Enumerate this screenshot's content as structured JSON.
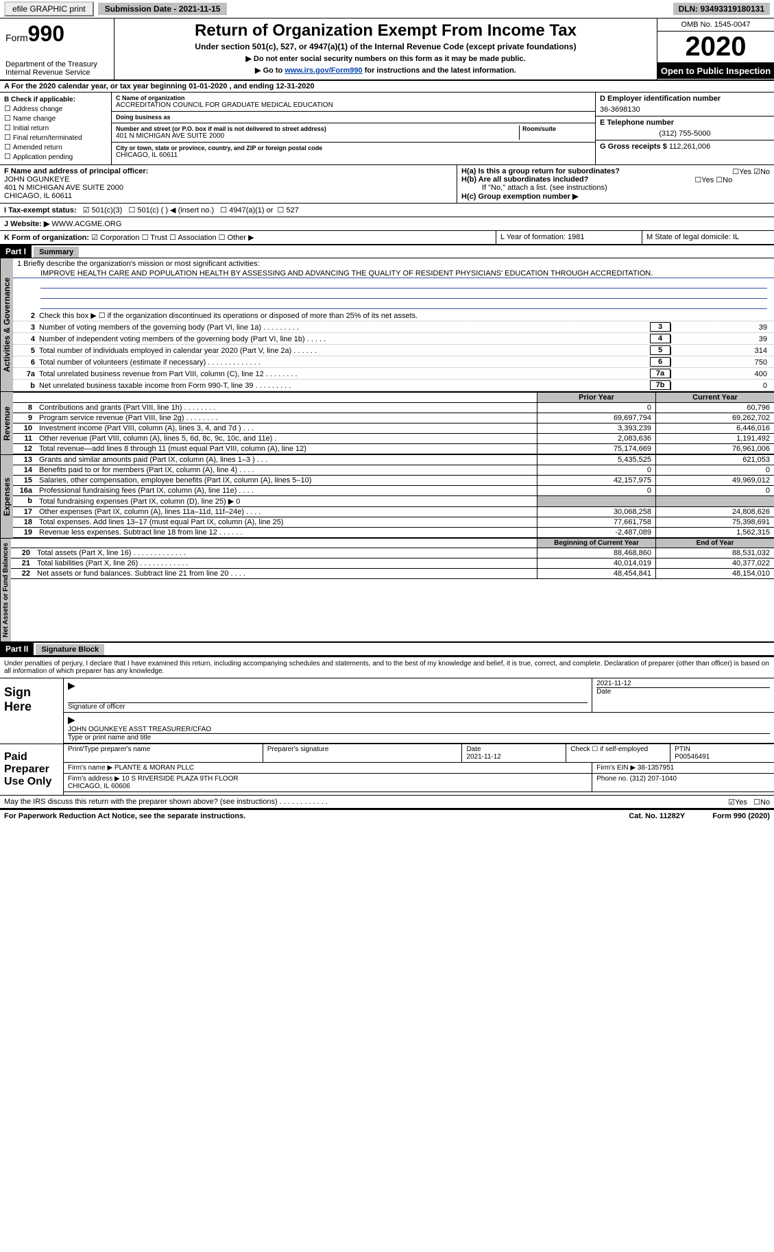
{
  "topbar": {
    "efile": "efile GRAPHIC print",
    "submission": "Submission Date - 2021-11-15",
    "dln": "DLN: 93493319180131"
  },
  "header": {
    "form_label": "Form",
    "form_num": "990",
    "dept": "Department of the Treasury\nInternal Revenue Service",
    "title": "Return of Organization Exempt From Income Tax",
    "sub": "Under section 501(c), 527, or 4947(a)(1) of the Internal Revenue Code (except private foundations)",
    "note1": "▶ Do not enter social security numbers on this form as it may be made public.",
    "note2_pre": "▶ Go to ",
    "note2_link": "www.irs.gov/Form990",
    "note2_post": " for instructions and the latest information.",
    "omb": "OMB No. 1545-0047",
    "year": "2020",
    "inspect": "Open to Public Inspection"
  },
  "row_a": "A For the 2020 calendar year, or tax year beginning 01-01-2020    , and ending 12-31-2020",
  "col_b": {
    "title": "B Check if applicable:",
    "items": [
      "Address change",
      "Name change",
      "Initial return",
      "Final return/terminated",
      "Amended return",
      "Application pending"
    ]
  },
  "col_c": {
    "name_lbl": "C Name of organization",
    "name": "ACCREDITATION COUNCIL FOR GRADUATE MEDICAL EDUCATION",
    "dba_lbl": "Doing business as",
    "dba": "",
    "addr_lbl": "Number and street (or P.O. box if mail is not delivered to street address)",
    "room_lbl": "Room/suite",
    "addr": "401 N MICHIGAN AVE SUITE 2000",
    "city_lbl": "City or town, state or province, country, and ZIP or foreign postal code",
    "city": "CHICAGO, IL  60611"
  },
  "col_de": {
    "d_lbl": "D Employer identification number",
    "d": "36-3698130",
    "e_lbl": "E Telephone number",
    "e": "(312) 755-5000",
    "g_lbl": "G Gross receipts $",
    "g": "112,261,006"
  },
  "row_f": {
    "f_lbl": "F Name and address of principal officer:",
    "f_name": "JOHN OGUNKEYE",
    "f_addr": "401 N MICHIGAN AVE SUITE 2000\nCHICAGO, IL  60611",
    "ha": "H(a)  Is this a group return for subordinates?",
    "ha_yes": "Yes",
    "ha_no": "No",
    "hb": "H(b)  Are all subordinates included?",
    "hb_note": "If \"No,\" attach a list. (see instructions)",
    "hc": "H(c)  Group exemption number ▶"
  },
  "row_i": {
    "label": "I  Tax-exempt status:",
    "opt1": "501(c)(3)",
    "opt2": "501(c) (  ) ◀ (insert no.)",
    "opt3": "4947(a)(1) or",
    "opt4": "527"
  },
  "row_j": {
    "label": "J  Website: ▶",
    "value": "WWW.ACGME.ORG"
  },
  "row_k": {
    "label": "K Form of organization:",
    "opts": [
      "Corporation",
      "Trust",
      "Association",
      "Other ▶"
    ],
    "l": "L Year of formation: 1981",
    "m": "M State of legal domicile: IL"
  },
  "part1": {
    "bar": "Part I",
    "title": "Summary"
  },
  "mission_lbl": "1   Briefly describe the organization's mission or most significant activities:",
  "mission": "IMPROVE HEALTH CARE AND POPULATION HEALTH BY ASSESSING AND ADVANCING THE QUALITY OF RESIDENT PHYSICIANS' EDUCATION THROUGH ACCREDITATION.",
  "gov_lines": [
    {
      "n": "2",
      "t": "Check this box ▶ ☐  if the organization discontinued its operations or disposed of more than 25% of its net assets.",
      "box": "",
      "v": ""
    },
    {
      "n": "3",
      "t": "Number of voting members of the governing body (Part VI, line 1a)   .    .    .    .    .    .    .    .    .",
      "box": "3",
      "v": "39"
    },
    {
      "n": "4",
      "t": "Number of independent voting members of the governing body (Part VI, line 1b)   .    .    .    .    .",
      "box": "4",
      "v": "39"
    },
    {
      "n": "5",
      "t": "Total number of individuals employed in calendar year 2020 (Part V, line 2a)   .    .    .    .    .    .",
      "box": "5",
      "v": "314"
    },
    {
      "n": "6",
      "t": "Total number of volunteers (estimate if necessary)   .    .    .    .    .    .    .    .    .    .    .    .    .",
      "box": "6",
      "v": "750"
    },
    {
      "n": "7a",
      "t": "Total unrelated business revenue from Part VIII, column (C), line 12   .    .    .    .    .    .    .    .",
      "box": "7a",
      "v": "400"
    },
    {
      "n": "b",
      "t": "Net unrelated business taxable income from Form 990-T, line 39   .    .    .    .    .    .    .    .    .",
      "box": "7b",
      "v": "0"
    }
  ],
  "dual_hdr": {
    "prev": "Prior Year",
    "curr": "Current Year"
  },
  "revenue": [
    {
      "n": "8",
      "t": "Contributions and grants (Part VIII, line 1h)   .    .    .    .    .    .    .    .",
      "p": "0",
      "c": "60,796"
    },
    {
      "n": "9",
      "t": "Program service revenue (Part VIII, line 2g)   .    .    .    .    .    .    .    .",
      "p": "69,697,794",
      "c": "69,262,702"
    },
    {
      "n": "10",
      "t": "Investment income (Part VIII, column (A), lines 3, 4, and 7d )   .    .    .",
      "p": "3,393,239",
      "c": "6,446,016"
    },
    {
      "n": "11",
      "t": "Other revenue (Part VIII, column (A), lines 5, 6d, 8c, 9c, 10c, and 11e)   .",
      "p": "2,083,636",
      "c": "1,191,492"
    },
    {
      "n": "12",
      "t": "Total revenue—add lines 8 through 11 (must equal Part VIII, column (A), line 12)",
      "p": "75,174,669",
      "c": "76,961,006"
    }
  ],
  "expenses": [
    {
      "n": "13",
      "t": "Grants and similar amounts paid (Part IX, column (A), lines 1–3 )   .    .    .",
      "p": "5,435,525",
      "c": "621,053"
    },
    {
      "n": "14",
      "t": "Benefits paid to or for members (Part IX, column (A), line 4)   .    .    .    .",
      "p": "0",
      "c": "0"
    },
    {
      "n": "15",
      "t": "Salaries, other compensation, employee benefits (Part IX, column (A), lines 5–10)",
      "p": "42,157,975",
      "c": "49,969,012"
    },
    {
      "n": "16a",
      "t": "Professional fundraising fees (Part IX, column (A), line 11e)   .    .    .    .",
      "p": "0",
      "c": "0"
    },
    {
      "n": "b",
      "t": "Total fundraising expenses (Part IX, column (D), line 25) ▶ 0",
      "p": "",
      "c": "",
      "shade": true
    },
    {
      "n": "17",
      "t": "Other expenses (Part IX, column (A), lines 11a–11d, 11f–24e)   .    .    .    .",
      "p": "30,068,258",
      "c": "24,808,626"
    },
    {
      "n": "18",
      "t": "Total expenses. Add lines 13–17 (must equal Part IX, column (A), line 25)",
      "p": "77,661,758",
      "c": "75,398,691"
    },
    {
      "n": "19",
      "t": "Revenue less expenses. Subtract line 18 from line 12   .    .    .    .    .    .",
      "p": "-2,487,089",
      "c": "1,562,315"
    }
  ],
  "net_hdr": {
    "prev": "Beginning of Current Year",
    "curr": "End of Year"
  },
  "netassets": [
    {
      "n": "20",
      "t": "Total assets (Part X, line 16)   .    .    .    .    .    .    .    .    .    .    .    .    .",
      "p": "88,468,860",
      "c": "88,531,032"
    },
    {
      "n": "21",
      "t": "Total liabilities (Part X, line 26)   .    .    .    .    .    .    .    .    .    .    .    .",
      "p": "40,014,019",
      "c": "40,377,022"
    },
    {
      "n": "22",
      "t": "Net assets or fund balances. Subtract line 21 from line 20   .    .    .    .",
      "p": "48,454,841",
      "c": "48,154,010"
    }
  ],
  "tabs": {
    "gov": "Activities & Governance",
    "rev": "Revenue",
    "exp": "Expenses",
    "net": "Net Assets or Fund Balances"
  },
  "part2": {
    "bar": "Part II",
    "title": "Signature Block"
  },
  "penalty": "Under penalties of perjury, I declare that I have examined this return, including accompanying schedules and statements, and to the best of my knowledge and belief, it is true, correct, and complete. Declaration of preparer (other than officer) is based on all information of which preparer has any knowledge.",
  "sign": {
    "side": "Sign Here",
    "sig_lbl": "Signature of officer",
    "date": "2021-11-12",
    "date_lbl": "Date",
    "name": "JOHN OGUNKEYE  ASST TREASURER/CFAO",
    "name_lbl": "Type or print name and title"
  },
  "paid": {
    "side": "Paid Preparer Use Only",
    "h1": "Print/Type preparer's name",
    "h2": "Preparer's signature",
    "h3": "Date",
    "h3v": "2021-11-12",
    "h4": "Check ☐ if self-employed",
    "h5": "PTIN",
    "h5v": "P00546491",
    "firm_lbl": "Firm's name    ▶",
    "firm": "PLANTE & MORAN PLLC",
    "ein_lbl": "Firm's EIN ▶",
    "ein": "38-1357951",
    "addr_lbl": "Firm's address ▶",
    "addr": "10 S RIVERSIDE PLAZA 9TH FLOOR\nCHICAGO, IL  60606",
    "phone_lbl": "Phone no.",
    "phone": "(312) 207-1040"
  },
  "discuss": "May the IRS discuss this return with the preparer shown above? (see instructions)   .    .    .    .    .    .    .    .    .    .    .    .",
  "yes": "Yes",
  "no": "No",
  "foot": {
    "l": "For Paperwork Reduction Act Notice, see the separate instructions.",
    "m": "Cat. No. 11282Y",
    "r": "Form 990 (2020)"
  }
}
